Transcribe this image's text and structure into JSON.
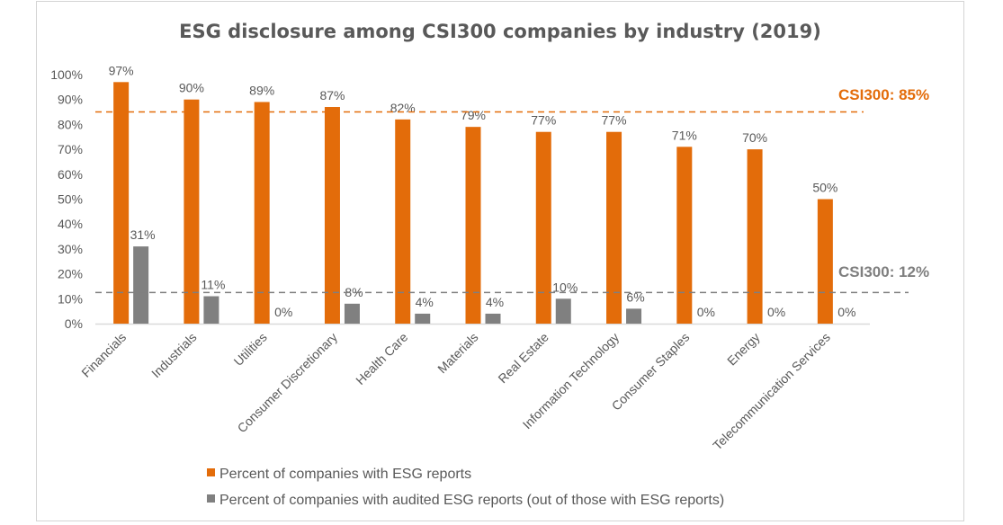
{
  "chart_data": {
    "type": "bar",
    "title": "ESG disclosure among CSI300 companies by industry (2019)",
    "xlabel": "",
    "ylabel": "",
    "ylim": [
      0,
      100
    ],
    "y_ticks": [
      "0%",
      "10%",
      "20%",
      "30%",
      "40%",
      "50%",
      "60%",
      "70%",
      "80%",
      "90%",
      "100%"
    ],
    "grid": false,
    "legend_position": "bottom",
    "categories": [
      "Financials",
      "Industrials",
      "Utilities",
      "Consumer Discretionary",
      "Health Care",
      "Materials",
      "Real Estate",
      "Information Technology",
      "Consumer Staples",
      "Energy",
      "Telecommunication Services"
    ],
    "series": [
      {
        "name": "Percent of companies with ESG reports",
        "color": "#E36C0A",
        "values": [
          97,
          90,
          89,
          87,
          82,
          79,
          77,
          77,
          71,
          70,
          50
        ],
        "labels": [
          "97%",
          "90%",
          "89%",
          "87%",
          "82%",
          "79%",
          "77%",
          "77%",
          "71%",
          "70%",
          "50%"
        ]
      },
      {
        "name": "Percent of companies with audited ESG reports (out of those with ESG reports)",
        "color": "#808080",
        "values": [
          31,
          11,
          0,
          8,
          4,
          4,
          10,
          6,
          0,
          0,
          0
        ],
        "labels": [
          "31%",
          "11%",
          "0%",
          "8%",
          "4%",
          "4%",
          "10%",
          "6%",
          "0%",
          "0%",
          "0%"
        ]
      }
    ],
    "reference_lines": [
      {
        "label": "CSI300: 85%",
        "value": 85,
        "color": "#E36C0A",
        "style": "dashed"
      },
      {
        "label": "CSI300: 12%",
        "value": 12.5,
        "color": "#7f7f7f",
        "style": "dashed"
      }
    ]
  }
}
